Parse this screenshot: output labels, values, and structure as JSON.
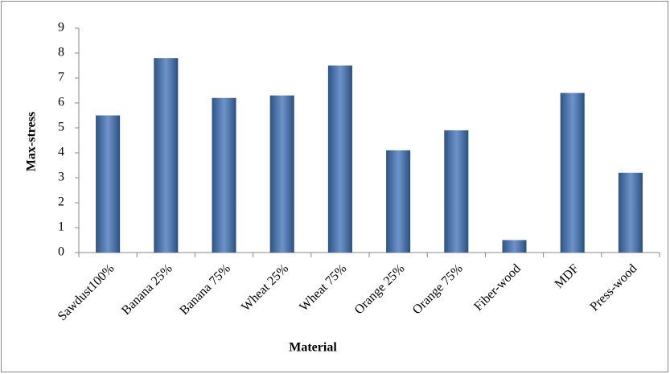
{
  "chart_data": {
    "type": "bar",
    "x_label": "Material",
    "y_label": "Max-stress",
    "categories": [
      "Sawdust100%",
      "Banana 25%",
      "Banana 75%",
      "Wheat 25%",
      "Wheat 75%",
      "Orange 25%",
      "Orange 75%",
      "Fiber-wood",
      "MDF",
      "Press-wood"
    ],
    "values": [
      5.5,
      7.8,
      6.2,
      6.3,
      7.5,
      4.1,
      4.9,
      0.5,
      6.4,
      3.2
    ],
    "color": "#3c6fb6",
    "ylim": [
      0,
      9
    ],
    "yticks": [
      0,
      1,
      2,
      3,
      4,
      5,
      6,
      7,
      8,
      9
    ],
    "grid": false
  }
}
